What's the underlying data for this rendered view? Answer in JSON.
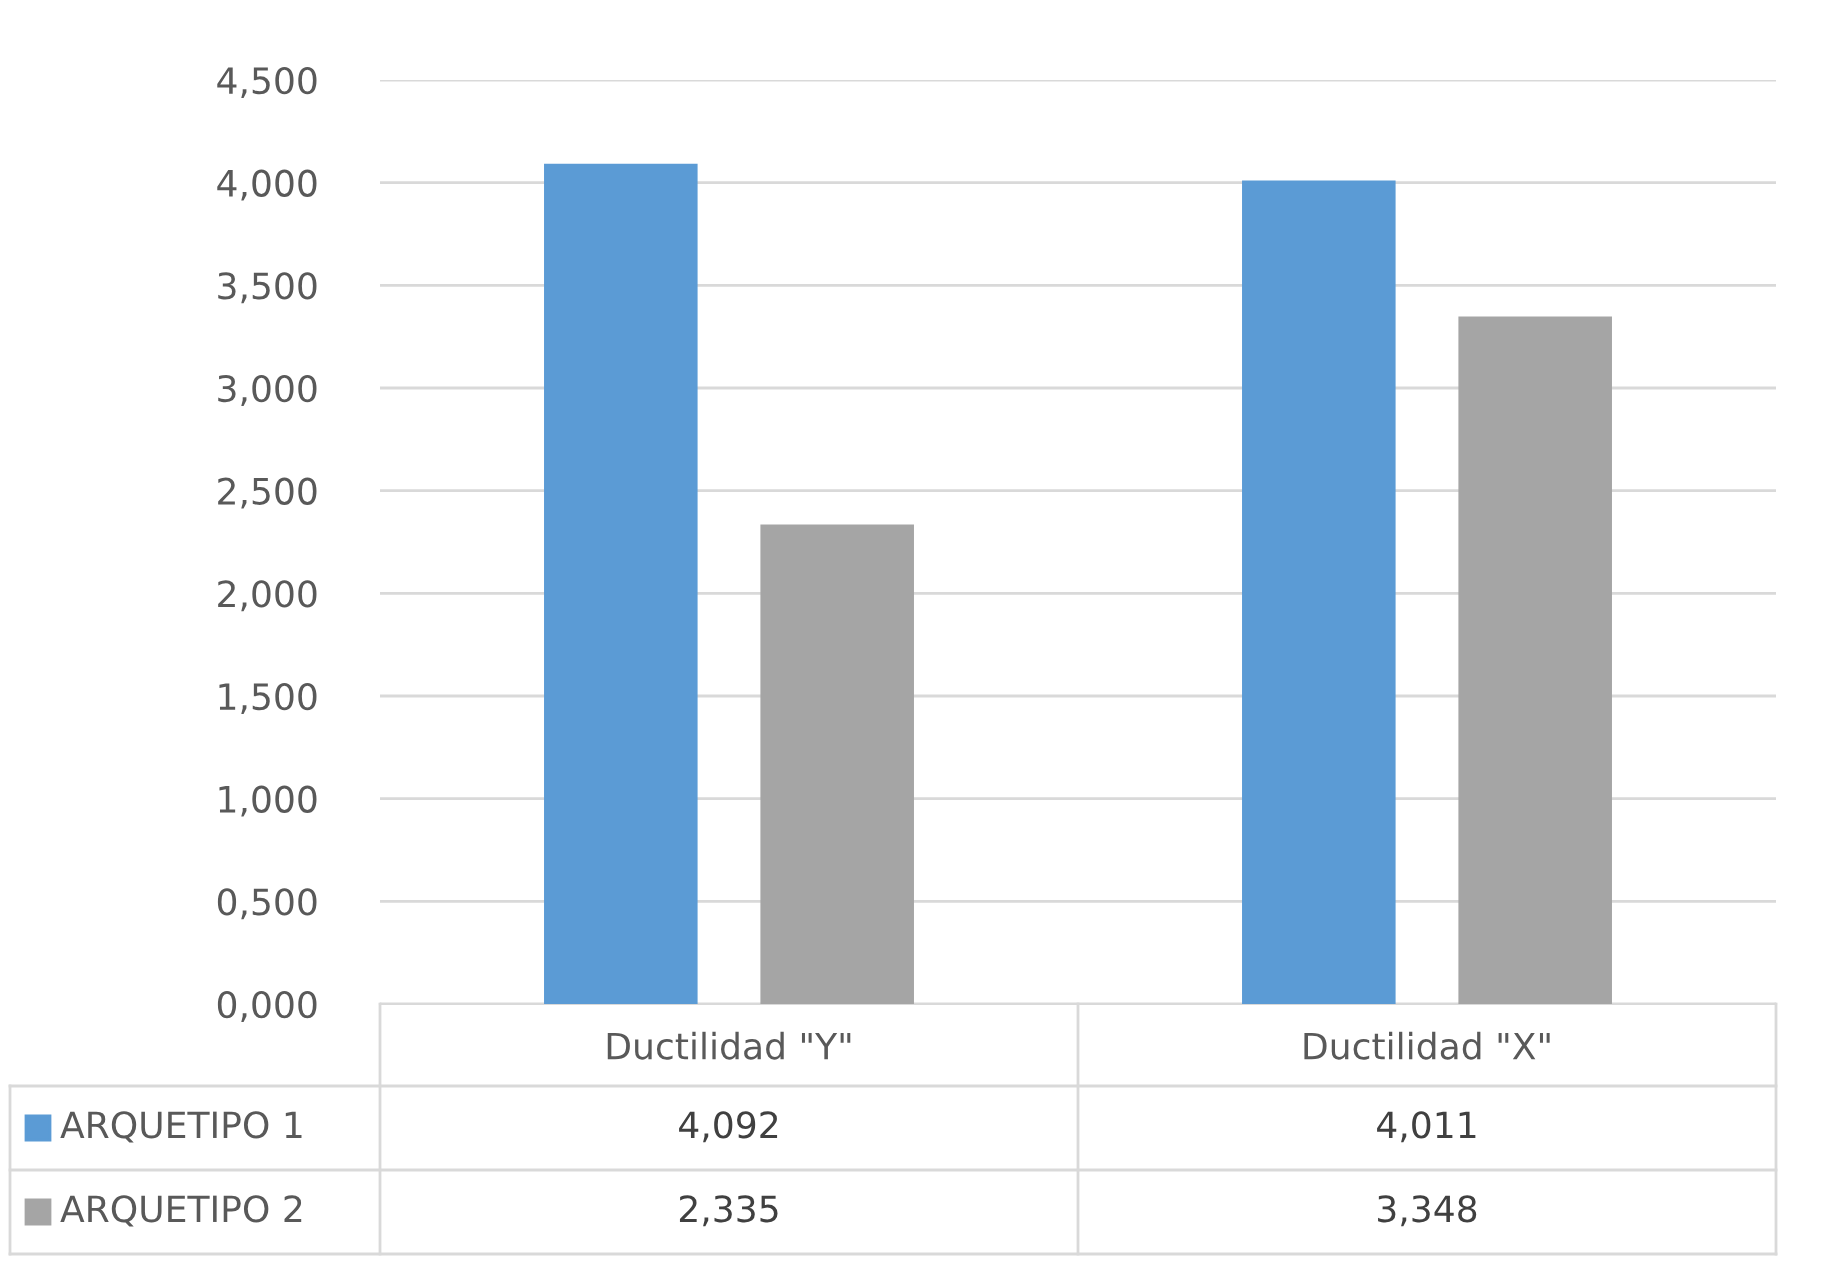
{
  "chart_data": {
    "type": "bar",
    "categories": [
      "Ductilidad \"Y\"",
      "Ductilidad \"X\""
    ],
    "series": [
      {
        "name": "ARQUETIPO 1",
        "color": "#5b9bd5",
        "values": [
          4.092,
          4.011
        ],
        "value_labels": [
          "4,092",
          "4,011"
        ]
      },
      {
        "name": "ARQUETIPO 2",
        "color": "#a5a5a5",
        "values": [
          2.335,
          3.348
        ],
        "value_labels": [
          "2,335",
          "3,348"
        ]
      }
    ],
    "ylim": [
      0,
      4.5
    ],
    "yticks": [
      {
        "value": 0,
        "label": "0,000"
      },
      {
        "value": 0.5,
        "label": "0,500"
      },
      {
        "value": 1,
        "label": "1,000"
      },
      {
        "value": 1.5,
        "label": "1,500"
      },
      {
        "value": 2,
        "label": "2,000"
      },
      {
        "value": 2.5,
        "label": "2,500"
      },
      {
        "value": 3,
        "label": "3,000"
      },
      {
        "value": 3.5,
        "label": "3,500"
      },
      {
        "value": 4,
        "label": "4,000"
      },
      {
        "value": 4.5,
        "label": "4,500"
      }
    ],
    "grid": "y",
    "legend": "bottom"
  }
}
